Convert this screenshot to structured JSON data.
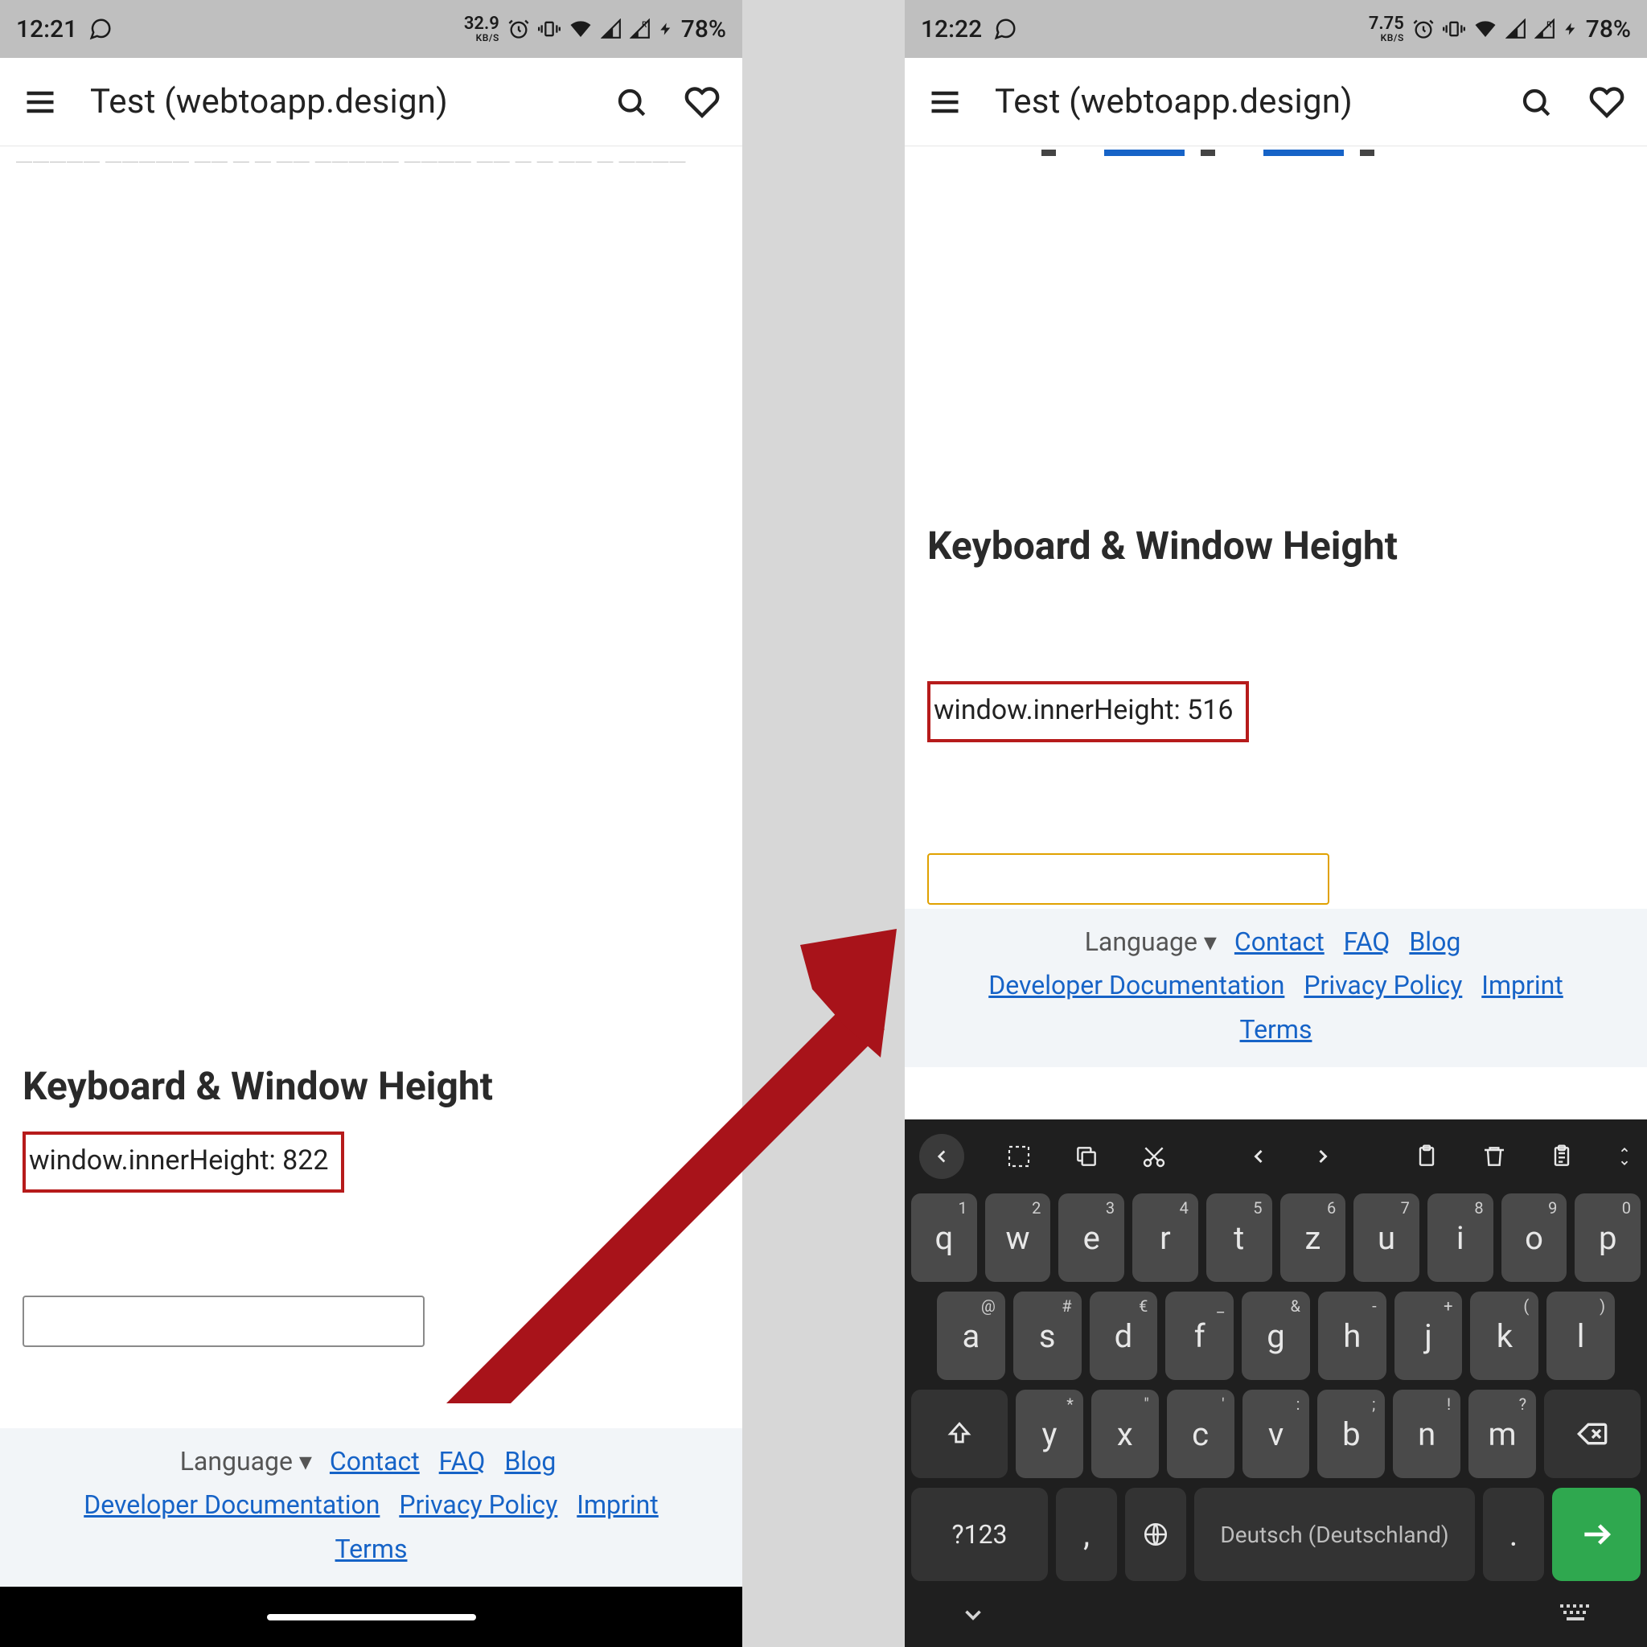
{
  "colors": {
    "highlight_border": "#b61b1b",
    "input_border_left": "#8a8a8a",
    "input_border_right": "#e0a100",
    "link": "#1663c7",
    "arrow": "#a8131a"
  },
  "statusbar": {
    "left": {
      "time": "12:21"
    },
    "right": {
      "time": "12:22"
    },
    "net_left": "32.9",
    "net_right": "7.75",
    "net_unit": "KB/S",
    "battery": "78%"
  },
  "appbar": {
    "title": "Test (webtoapp.design)"
  },
  "page": {
    "heading": "Keyboard & Window Height",
    "innerh_label": "window.innerHeight: ",
    "innerh_left": "822",
    "innerh_right": "516"
  },
  "footer": {
    "language": "Language",
    "links": {
      "contact": "Contact",
      "faq": "FAQ",
      "blog": "Blog",
      "devdocs": "Developer Documentation",
      "privacy": "Privacy Policy",
      "imprint": "Imprint",
      "terms": "Terms"
    }
  },
  "keyboard": {
    "row1": [
      {
        "k": "q",
        "s": "1"
      },
      {
        "k": "w",
        "s": "2"
      },
      {
        "k": "e",
        "s": "3"
      },
      {
        "k": "r",
        "s": "4"
      },
      {
        "k": "t",
        "s": "5"
      },
      {
        "k": "z",
        "s": "6"
      },
      {
        "k": "u",
        "s": "7"
      },
      {
        "k": "i",
        "s": "8"
      },
      {
        "k": "o",
        "s": "9"
      },
      {
        "k": "p",
        "s": "0"
      }
    ],
    "row2": [
      {
        "k": "a",
        "s": "@"
      },
      {
        "k": "s",
        "s": "#"
      },
      {
        "k": "d",
        "s": "€"
      },
      {
        "k": "f",
        "s": "_"
      },
      {
        "k": "g",
        "s": "&"
      },
      {
        "k": "h",
        "s": "-"
      },
      {
        "k": "j",
        "s": "+"
      },
      {
        "k": "k",
        "s": "("
      },
      {
        "k": "l",
        "s": ")"
      }
    ],
    "row3": [
      {
        "k": "y",
        "s": "*"
      },
      {
        "k": "x",
        "s": "\""
      },
      {
        "k": "c",
        "s": "'"
      },
      {
        "k": "v",
        "s": ":"
      },
      {
        "k": "b",
        "s": ";"
      },
      {
        "k": "n",
        "s": "!"
      },
      {
        "k": "m",
        "s": "?"
      }
    ],
    "sym": "?123",
    "space": "Deutsch (Deutschland)"
  }
}
